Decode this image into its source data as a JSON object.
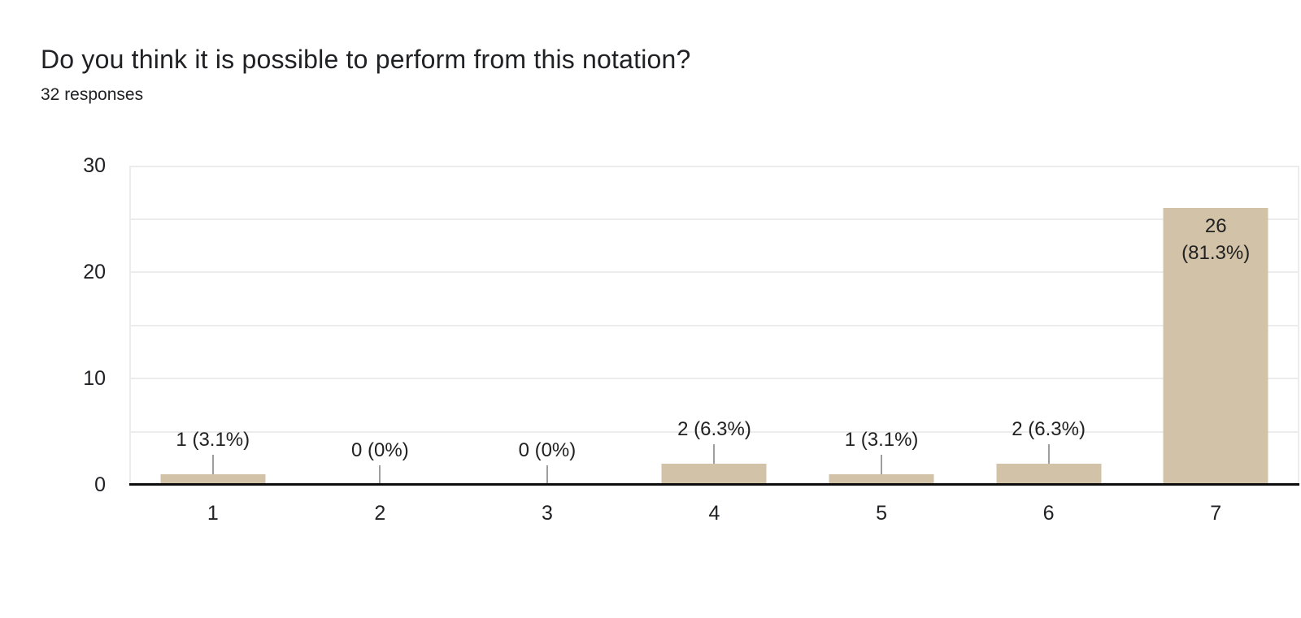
{
  "header": {
    "title": "Do you think it is possible to perform from this notation?",
    "responses": "32 responses"
  },
  "chart_data": {
    "type": "bar",
    "title": "Do you think it is possible to perform from this notation?",
    "subtitle": "32 responses",
    "categories": [
      "1",
      "2",
      "3",
      "4",
      "5",
      "6",
      "7"
    ],
    "values": [
      1,
      0,
      0,
      2,
      1,
      2,
      26
    ],
    "points": [
      {
        "category": "1",
        "value": 1,
        "annotation": "1 (3.1%)",
        "annotation_position": "above"
      },
      {
        "category": "2",
        "value": 0,
        "annotation": "0 (0%)",
        "annotation_position": "above"
      },
      {
        "category": "3",
        "value": 0,
        "annotation": "0 (0%)",
        "annotation_position": "above"
      },
      {
        "category": "4",
        "value": 2,
        "annotation": "2 (6.3%)",
        "annotation_position": "above"
      },
      {
        "category": "5",
        "value": 1,
        "annotation": "1 (3.1%)",
        "annotation_position": "above"
      },
      {
        "category": "6",
        "value": 2,
        "annotation": "2 (6.3%)",
        "annotation_position": "above"
      },
      {
        "category": "7",
        "value": 26,
        "annotation": "26 (81.3%)",
        "annotation_lines": [
          "26",
          "(81.3%)"
        ],
        "annotation_position": "inside"
      }
    ],
    "xlabel": "",
    "ylabel": "",
    "y_ticks": [
      0,
      10,
      20,
      30
    ],
    "ylim": [
      0,
      30
    ],
    "gridline_step": 5,
    "grid": true,
    "legend": "none",
    "colors": {
      "bar": "#d2c3a8",
      "gridline": "#ececec",
      "axis_line": "#0d0d0d",
      "stem": "#9e9e9e",
      "text": "#212121",
      "title_text": "#202124",
      "background": "#ffffff"
    }
  }
}
